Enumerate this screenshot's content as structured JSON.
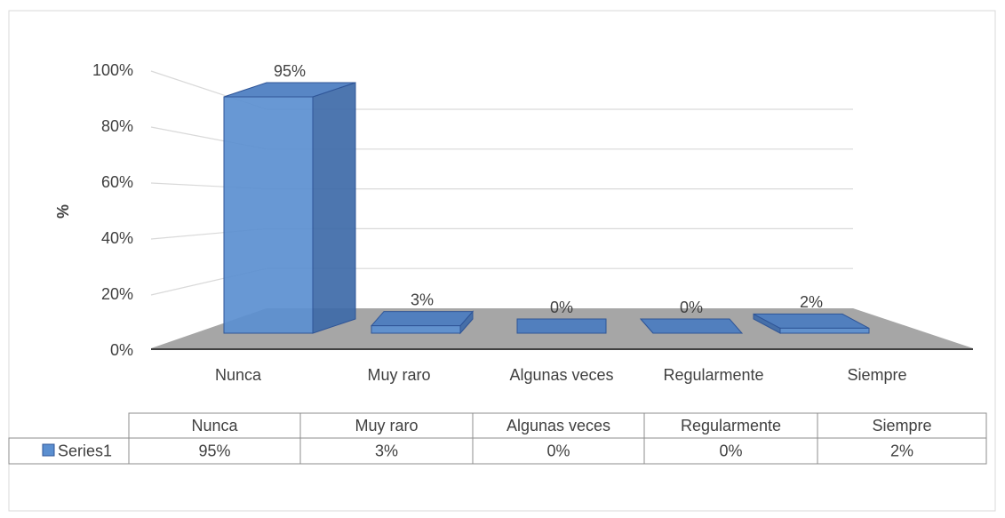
{
  "chart_data": {
    "type": "bar3d",
    "y_axis_label": "%",
    "categories": [
      "Nunca",
      "Muy raro",
      "Algunas veces",
      "Regularmente",
      "Siempre"
    ],
    "series": [
      {
        "name": "Series1",
        "color": "#5b8fd0",
        "values": [
          95,
          3,
          0,
          0,
          2
        ],
        "value_labels": [
          "95%",
          "3%",
          "0%",
          "0%",
          "2%"
        ]
      }
    ],
    "ylim": [
      0,
      100
    ],
    "yticks": [
      {
        "value": 0,
        "label": "0%"
      },
      {
        "value": 20,
        "label": "20%"
      },
      {
        "value": 40,
        "label": "40%"
      },
      {
        "value": 60,
        "label": "60%"
      },
      {
        "value": 80,
        "label": "80%"
      },
      {
        "value": 100,
        "label": "100%"
      }
    ],
    "grid": true,
    "data_table": true
  }
}
